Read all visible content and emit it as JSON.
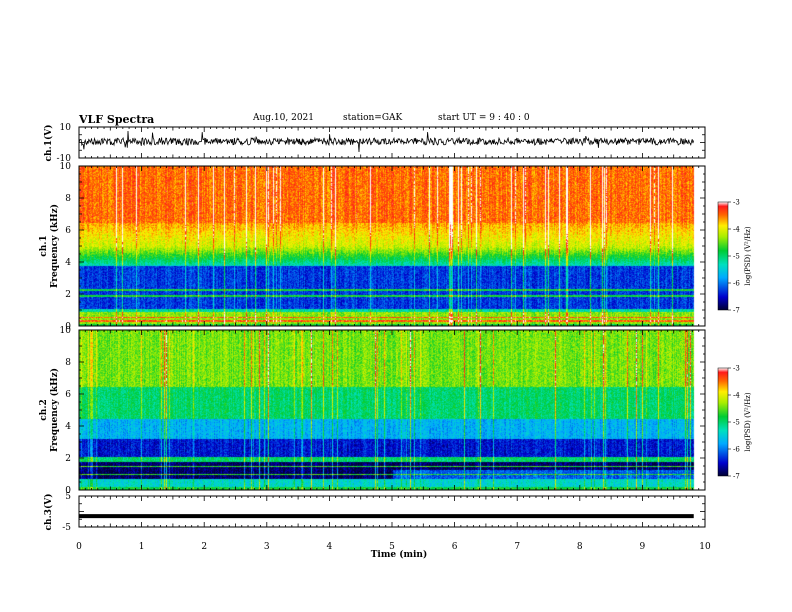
{
  "header": {
    "title": "VLF Spectra",
    "date": "Aug.10, 2021",
    "station": "station=GAK",
    "start_ut": "start UT =  9 : 40 : 0"
  },
  "chart_data": {
    "type": "heatmap",
    "x_axis": {
      "label": "Time (min)",
      "range": [
        0,
        10
      ],
      "ticks": [
        0,
        1,
        2,
        3,
        4,
        5,
        6,
        7,
        8,
        9,
        10
      ]
    },
    "panels": [
      {
        "id": "ch1-waveform",
        "kind": "line",
        "ylabel": "ch.1(V)",
        "ylim": [
          -10,
          10
        ],
        "tick_labels": [
          "10",
          "-10"
        ]
      },
      {
        "id": "ch1-spectrogram",
        "kind": "heatmap",
        "ylabel_top": "ch.1",
        "ylabel": "Frequency (kHz)",
        "ylim": [
          0,
          10
        ],
        "ticks": [
          0,
          2,
          4,
          6,
          8,
          10
        ],
        "colorbar": {
          "label": "log(PSD) (V²/Hz)",
          "range": [
            -7,
            -3
          ],
          "ticks": [
            -3,
            -4,
            -5,
            -6,
            -7
          ]
        }
      },
      {
        "id": "ch2-spectrogram",
        "kind": "heatmap",
        "ylabel_top": "ch.2",
        "ylabel": "Frequency (kHz)",
        "ylim": [
          0,
          10
        ],
        "ticks": [
          0,
          2,
          4,
          6,
          8,
          10
        ],
        "colorbar": {
          "label": "log(PSD) (V²/Hz)",
          "range": [
            -7,
            -3
          ],
          "ticks": [
            -3,
            -4,
            -5,
            -6,
            -7
          ]
        }
      },
      {
        "id": "ch3-waveform",
        "kind": "line",
        "ylabel": "ch.3(V)",
        "ylim": [
          -5,
          5
        ],
        "tick_labels": [
          "5",
          "-5"
        ],
        "level": -1.5
      }
    ],
    "data_end_min": 9.82
  }
}
